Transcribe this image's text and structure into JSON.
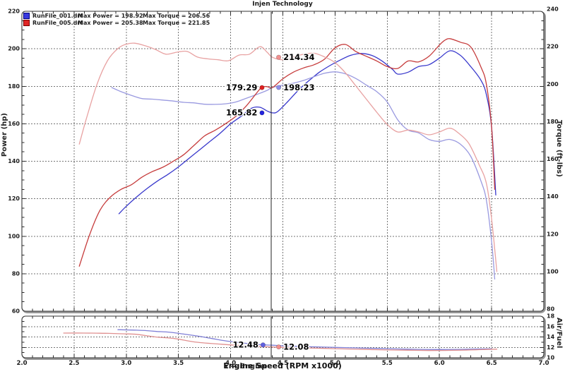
{
  "title": "Injen Technology",
  "legend": {
    "entries": [
      {
        "file": "RunFile_001.drf",
        "max_power": "Max Power = 198.92",
        "max_torque": "Max Torque = 206.56",
        "swatch_color": "#3939e0",
        "swatch_border": "#00007a"
      },
      {
        "file": "RunFile_005.drf",
        "max_power": "Max Power = 205.38",
        "max_torque": "Max Torque = 221.85",
        "swatch_color": "#e02626",
        "swatch_border": "#7a0000"
      }
    ]
  },
  "axes": {
    "x_label": "Engine Speed (RPM x1000)",
    "x_label_artifact": "▾ — Engine",
    "left_label": "Power (hp)",
    "right_label": "Torque (ft-lbs)",
    "af_label": "Air/Fuel"
  },
  "colors": {
    "power_001": "#3838cc",
    "torque_001": "#9a9ae0",
    "power_005": "#c63c3c",
    "torque_005": "#e8a2a2",
    "af_001": "#7f7fd6",
    "af_005": "#e09090",
    "grid": "#757575",
    "frame": "#333333",
    "bevel": "#989898",
    "cursor": "#222222"
  },
  "chart_data": [
    {
      "type": "line",
      "panel": "main",
      "title": "Injen Technology",
      "xlabel": "Engine Speed (RPM x1000)",
      "ylabel_left": "Power (hp)",
      "ylabel_right": "Torque (ft-lbs)",
      "xlim": [
        2.0,
        7.0
      ],
      "xticks": [
        2.0,
        2.5,
        3.0,
        3.5,
        4.0,
        4.5,
        5.0,
        5.5,
        6.0,
        6.5,
        7.0
      ],
      "xtick_labels": [
        "2.0",
        "2.5",
        "3.0",
        "3.5",
        "4.0",
        "4.5",
        "5.0",
        "5.5",
        "6.0",
        "6.5",
        "7.0"
      ],
      "show_xtick_labels": false,
      "ylim_left": [
        60,
        220
      ],
      "yticks_left": [
        60,
        80,
        100,
        120,
        140,
        160,
        180,
        200,
        220
      ],
      "ylim_right": [
        80,
        240
      ],
      "yticks_right": [
        80,
        100,
        120,
        140,
        160,
        180,
        200,
        220,
        240
      ],
      "grid_x": [
        2.5,
        3.0,
        3.5,
        4.0,
        4.5,
        5.0,
        5.5,
        6.0,
        6.5
      ],
      "grid_y": [
        80,
        100,
        120,
        140,
        160,
        180,
        200
      ],
      "legend_position": "top-left",
      "cursor_rpm": 4.39,
      "series": [
        {
          "name": "RunFile_001 Power (hp)",
          "axis": "power",
          "color": "#3838cc",
          "max": 198.92,
          "x": [
            2.93,
            3.0,
            3.1,
            3.2,
            3.3,
            3.4,
            3.5,
            3.6,
            3.7,
            3.8,
            3.9,
            4.0,
            4.1,
            4.2,
            4.28,
            4.35,
            4.4,
            4.45,
            4.55,
            4.65,
            4.75,
            4.85,
            4.95,
            5.05,
            5.15,
            5.25,
            5.35,
            5.45,
            5.55,
            5.6,
            5.7,
            5.8,
            5.9,
            6.0,
            6.1,
            6.2,
            6.3,
            6.4,
            6.45,
            6.5,
            6.54
          ],
          "y": [
            112,
            116,
            121,
            125.5,
            129.5,
            133,
            137,
            141.5,
            146,
            150.5,
            155,
            160,
            164,
            168.3,
            168.8,
            166.8,
            165.82,
            166.5,
            172,
            178,
            183,
            187.5,
            191,
            194,
            196.5,
            197.5,
            196.5,
            193.5,
            189,
            186.5,
            187.5,
            190.5,
            191.5,
            195,
            198.92,
            196.5,
            190.5,
            183,
            175.5,
            158,
            122
          ]
        },
        {
          "name": "RunFile_001 Torque (ft-lbs)",
          "axis": "torque",
          "color": "#9a9ae0",
          "max": 206.56,
          "x": [
            2.86,
            2.95,
            3.05,
            3.15,
            3.25,
            3.35,
            3.45,
            3.55,
            3.65,
            3.75,
            3.85,
            3.95,
            4.05,
            4.15,
            4.25,
            4.35,
            4.4,
            4.5,
            4.6,
            4.7,
            4.8,
            4.9,
            5.0,
            5.1,
            5.2,
            5.3,
            5.4,
            5.5,
            5.6,
            5.7,
            5.8,
            5.9,
            6.0,
            6.1,
            6.2,
            6.3,
            6.4,
            6.45,
            6.5,
            6.53
          ],
          "y": [
            198.2,
            196,
            194,
            192.3,
            192,
            191.5,
            191,
            190.3,
            190,
            189.3,
            189.2,
            189.5,
            190.5,
            192.5,
            194.5,
            196.7,
            198.23,
            199.5,
            200.5,
            202,
            204,
            205.8,
            206.56,
            205.5,
            203,
            199.5,
            196,
            190.5,
            181,
            175.5,
            174,
            170.5,
            169.5,
            170.5,
            168,
            161.5,
            148,
            138,
            116,
            96
          ]
        },
        {
          "name": "RunFile_005 Power (hp)",
          "axis": "power",
          "color": "#c63c3c",
          "max": 205.38,
          "x": [
            2.55,
            2.65,
            2.75,
            2.85,
            2.95,
            3.05,
            3.15,
            3.25,
            3.35,
            3.45,
            3.55,
            3.65,
            3.75,
            3.85,
            3.95,
            4.05,
            4.15,
            4.25,
            4.3,
            4.35,
            4.4,
            4.5,
            4.6,
            4.7,
            4.8,
            4.9,
            5.0,
            5.1,
            5.2,
            5.3,
            5.4,
            5.5,
            5.6,
            5.7,
            5.8,
            5.9,
            6.0,
            6.05,
            6.1,
            6.2,
            6.3,
            6.4,
            6.45,
            6.5,
            6.53
          ],
          "y": [
            84,
            101,
            114,
            121,
            125,
            127.5,
            131.5,
            134.5,
            136.8,
            140,
            143.5,
            148.5,
            153.5,
            156.5,
            160,
            164,
            169.5,
            176.5,
            179.5,
            179.8,
            179.29,
            184,
            187.5,
            189.8,
            191.5,
            194.5,
            200.5,
            202.3,
            198.5,
            196,
            193.5,
            190.5,
            189.5,
            193.5,
            193,
            196,
            202,
            204.5,
            205.38,
            203.5,
            201,
            190,
            181,
            158,
            125
          ]
        },
        {
          "name": "RunFile_005 Torque (ft-lbs)",
          "axis": "torque",
          "color": "#e8a2a2",
          "max": 221.85,
          "x": [
            2.55,
            2.62,
            2.72,
            2.82,
            2.92,
            3.0,
            3.08,
            3.18,
            3.28,
            3.38,
            3.48,
            3.58,
            3.68,
            3.78,
            3.88,
            3.98,
            4.08,
            4.18,
            4.28,
            4.35,
            4.4,
            4.5,
            4.6,
            4.7,
            4.8,
            4.9,
            5.0,
            5.1,
            5.2,
            5.3,
            5.4,
            5.5,
            5.6,
            5.7,
            5.8,
            5.9,
            6.0,
            6.1,
            6.18,
            6.28,
            6.38,
            6.45,
            6.5,
            6.55
          ],
          "y": [
            168,
            182,
            200,
            212.5,
            219,
            221.3,
            221.85,
            220.5,
            218.5,
            216,
            217,
            217.5,
            214.5,
            213.5,
            213,
            212.5,
            215.5,
            216,
            220,
            217,
            214.34,
            213,
            214.5,
            216,
            216.5,
            214.5,
            211.5,
            206,
            199,
            192,
            185,
            178.5,
            174.5,
            175.5,
            174.5,
            173,
            174.5,
            176.5,
            174,
            168.5,
            157,
            147,
            128,
            100
          ]
        }
      ],
      "markers": [
        {
          "label": "214.34",
          "value": 214.34,
          "rpm": 4.46,
          "axis": "torque",
          "side": "right",
          "color": "#f29090"
        },
        {
          "label": "198.23",
          "value": 198.23,
          "rpm": 4.46,
          "axis": "torque",
          "side": "right",
          "color": "#8f8fea"
        },
        {
          "label": "179.29",
          "value": 179.29,
          "rpm": 4.3,
          "axis": "power",
          "side": "left",
          "color": "#e02020"
        },
        {
          "label": "165.82",
          "value": 165.82,
          "rpm": 4.3,
          "axis": "power",
          "side": "left",
          "color": "#2222dd"
        }
      ]
    },
    {
      "type": "line",
      "panel": "af",
      "ylabel_right": "Air/Fuel",
      "xlim": [
        2.0,
        7.0
      ],
      "xticks": [
        2.0,
        2.5,
        3.0,
        3.5,
        4.0,
        4.5,
        5.0,
        5.5,
        6.0,
        6.5,
        7.0
      ],
      "xtick_labels": [
        "2.0",
        "2.5",
        "3.0",
        "3.5",
        "4.0",
        "4.5",
        "5.0",
        "5.5",
        "6.0",
        "6.5",
        "7.0"
      ],
      "show_xtick_labels": true,
      "ylim_right": [
        10,
        18
      ],
      "yticks_right": [
        10,
        12,
        14,
        16,
        18
      ],
      "grid_x": [
        2.5,
        3.0,
        3.5,
        4.0,
        4.5,
        5.0,
        5.5,
        6.0,
        6.5
      ],
      "grid_y": [
        12,
        14,
        16
      ],
      "cursor_rpm": 4.39,
      "series": [
        {
          "name": "RunFile_001 Air/Fuel",
          "axis": "af",
          "color": "#7f7fd6",
          "x": [
            2.92,
            3.0,
            3.1,
            3.2,
            3.3,
            3.42,
            3.55,
            3.69,
            3.82,
            3.95,
            4.05,
            4.18,
            4.31,
            4.4,
            4.5,
            4.65,
            4.8,
            5.0,
            5.2,
            5.4,
            5.6,
            5.8,
            6.0,
            6.2,
            6.35,
            6.5
          ],
          "y": [
            15.4,
            15.35,
            15.3,
            15.2,
            15.05,
            14.9,
            14.55,
            14.15,
            13.7,
            13.25,
            13.0,
            12.7,
            12.48,
            12.42,
            12.3,
            12.2,
            12.1,
            12.0,
            11.9,
            11.8,
            11.7,
            11.62,
            11.58,
            11.62,
            11.68,
            11.72
          ]
        },
        {
          "name": "RunFile_005 Air/Fuel",
          "axis": "af",
          "color": "#e09090",
          "x": [
            2.4,
            2.6,
            2.8,
            2.98,
            3.1,
            3.28,
            3.46,
            3.67,
            3.91,
            4.14,
            4.3,
            4.4,
            4.5,
            4.7,
            4.9,
            5.1,
            5.3,
            5.5,
            5.7,
            5.9,
            6.1,
            6.3,
            6.45,
            6.55
          ],
          "y": [
            14.75,
            14.75,
            14.7,
            14.6,
            14.5,
            14.0,
            13.7,
            13.0,
            12.6,
            12.3,
            12.15,
            12.08,
            12.0,
            11.9,
            11.8,
            11.7,
            11.6,
            11.5,
            11.45,
            11.4,
            11.42,
            11.5,
            11.6,
            11.65
          ]
        }
      ],
      "markers": [
        {
          "label": "12.48",
          "value": 12.48,
          "rpm": 4.31,
          "axis": "af",
          "side": "left",
          "color": "#6060e0"
        },
        {
          "label": "12.08",
          "value": 12.08,
          "rpm": 4.46,
          "axis": "af",
          "side": "right",
          "color": "#f29090"
        }
      ]
    }
  ]
}
